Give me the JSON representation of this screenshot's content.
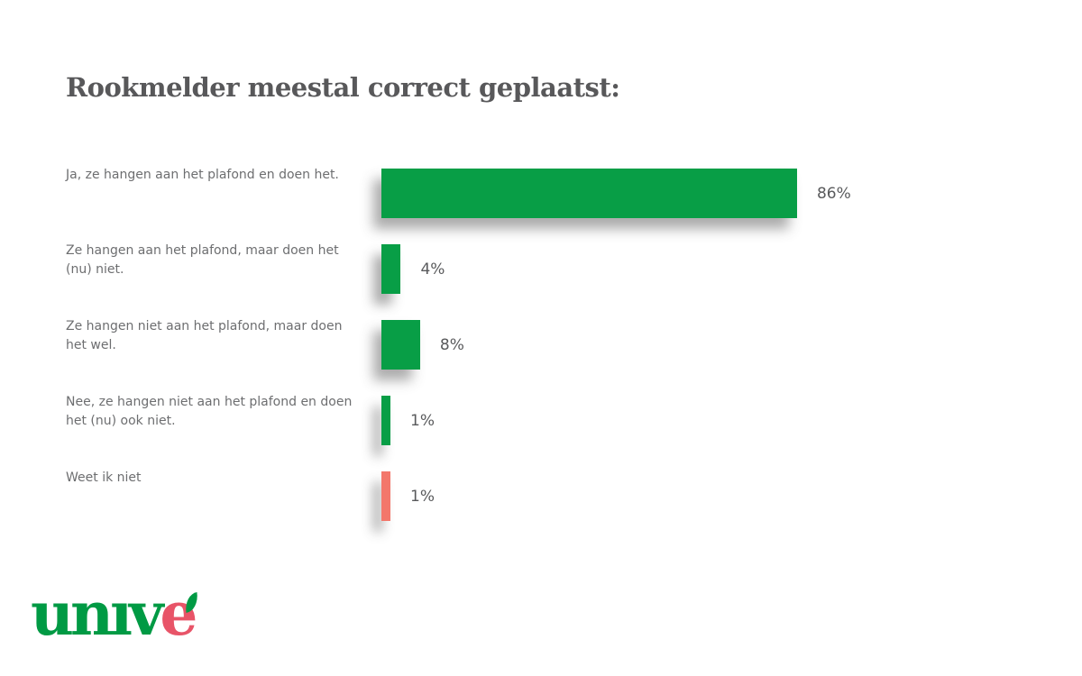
{
  "title": "Rookmelder meestal correct geplaatst:",
  "chart_data": {
    "type": "bar",
    "orientation": "horizontal",
    "title": "Rookmelder meestal correct geplaatst:",
    "categories": [
      "Ja, ze hangen aan het plafond en doen het.",
      "Ze hangen aan het plafond, maar doen het (nu) niet.",
      "Ze hangen niet aan het plafond, maar doen het wel.",
      "Nee, ze hangen niet aan het plafond en doen het (nu) ook niet.",
      "Weet ik niet"
    ],
    "values": [
      86,
      4,
      8,
      1,
      1
    ],
    "value_labels": [
      "86%",
      "4%",
      "8%",
      "1%",
      "1%"
    ],
    "bar_colors": [
      "#089e46",
      "#089e46",
      "#089e46",
      "#089e46",
      "#f3776b"
    ],
    "xlim": [
      0,
      100
    ],
    "grid": false,
    "legend": false
  },
  "colors": {
    "bar_green": "#089e46",
    "bar_red": "#f3776b",
    "title_text": "#58585a",
    "category_text": "#6d6e70",
    "value_text": "#595a5c",
    "logo_green": "#009a44",
    "logo_pink": "#e85468"
  },
  "logo": {
    "text_main": "unıv",
    "text_e": "e",
    "accent": "leaf"
  }
}
